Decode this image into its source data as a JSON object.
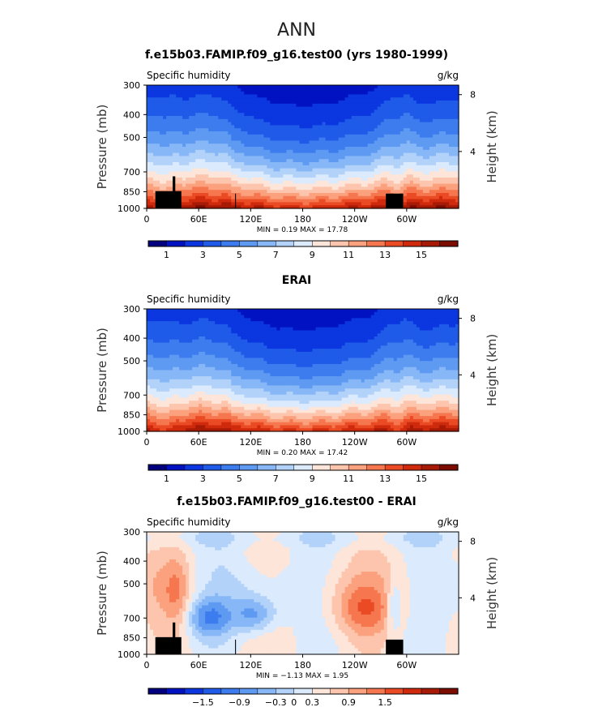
{
  "page": {
    "title": "ANN"
  },
  "colors": {
    "seq16": [
      "#02007e",
      "#0012c1",
      "#0b36e0",
      "#1f5be8",
      "#3c7cee",
      "#5f9af2",
      "#87b7f6",
      "#b2d2fa",
      "#dbeafd",
      "#fde5d9",
      "#fdc5ad",
      "#fba17e",
      "#f6774f",
      "#ea4a24",
      "#cf2a0d",
      "#a71a06",
      "#7c0c00"
    ],
    "div16": [
      "#02007e",
      "#0012c1",
      "#0b36e0",
      "#1f5be8",
      "#3c7cee",
      "#5f9af2",
      "#87b7f6",
      "#b2d2fa",
      "#dbeafd",
      "#fde5d9",
      "#fdc5ad",
      "#fba17e",
      "#f6774f",
      "#ea4a24",
      "#cf2a0d",
      "#a71a06",
      "#7c0c00"
    ],
    "land": "#000000"
  },
  "chart_data": [
    {
      "type": "heatmap",
      "title": "f.e15b03.FAMIP.f09_g16.test00 (yrs 1980-1999)",
      "left_label": "Specific humidity",
      "units": "g/kg",
      "ylabel": "Pressure (mb)",
      "ylabel_right": "Height (km)",
      "yticks": [
        "300",
        "400",
        "500",
        "700",
        "850",
        "1000"
      ],
      "yticks_right": [
        "8",
        "4"
      ],
      "xticks": [
        "0",
        "60E",
        "120E",
        "180",
        "120W",
        "60W"
      ],
      "stats": "MIN =    0.19   MAX =   17.78",
      "colorbar_labels": [
        "1",
        "3",
        "5",
        "7",
        "9",
        "11",
        "13",
        "15"
      ],
      "ylim": [
        1000,
        300
      ],
      "xlim": [
        0,
        360
      ],
      "value_range": [
        0,
        16.0
      ],
      "colorbar_levels": [
        0,
        1,
        2,
        3,
        4,
        5,
        6,
        7,
        8,
        9,
        10,
        11,
        12,
        13,
        14,
        15,
        16
      ]
    },
    {
      "type": "heatmap",
      "title": "ERAI",
      "left_label": "Specific humidity",
      "units": "g/kg",
      "ylabel": "Pressure (mb)",
      "ylabel_right": "Height (km)",
      "yticks": [
        "300",
        "400",
        "500",
        "700",
        "850",
        "1000"
      ],
      "yticks_right": [
        "8",
        "4"
      ],
      "xticks": [
        "0",
        "60E",
        "120E",
        "180",
        "120W",
        "60W"
      ],
      "stats": "MIN =    0.20   MAX =   17.42",
      "colorbar_labels": [
        "1",
        "3",
        "5",
        "7",
        "9",
        "11",
        "13",
        "15"
      ],
      "ylim": [
        1000,
        300
      ],
      "xlim": [
        0,
        360
      ],
      "value_range": [
        0,
        16.0
      ],
      "colorbar_levels": [
        0,
        1,
        2,
        3,
        4,
        5,
        6,
        7,
        8,
        9,
        10,
        11,
        12,
        13,
        14,
        15,
        16
      ]
    },
    {
      "type": "heatmap",
      "title": "f.e15b03.FAMIP.f09_g16.test00 - ERAI",
      "left_label": "Specific humidity",
      "units": "g/kg",
      "ylabel": "Pressure (mb)",
      "ylabel_right": "Height (km)",
      "yticks": [
        "300",
        "400",
        "500",
        "700",
        "850",
        "1000"
      ],
      "yticks_right": [
        "8",
        "4"
      ],
      "xticks": [
        "0",
        "60E",
        "120E",
        "180",
        "120W",
        "60W"
      ],
      "stats": "MIN =  −1.13   MAX =   1.95",
      "colorbar_labels": [
        "−1.5",
        "−0.9",
        "−0.3",
        "0",
        "0.3",
        "0.9",
        "1.5"
      ],
      "ylim": [
        1000,
        300
      ],
      "xlim": [
        0,
        360
      ],
      "value_range": [
        -2.4,
        2.4
      ],
      "colorbar_levels": [
        -2.4,
        -2.1,
        -1.8,
        -1.5,
        -1.2,
        -0.9,
        -0.6,
        -0.3,
        0,
        0.3,
        0.6,
        0.9,
        1.2,
        1.5,
        1.8,
        2.1,
        2.4
      ]
    }
  ]
}
